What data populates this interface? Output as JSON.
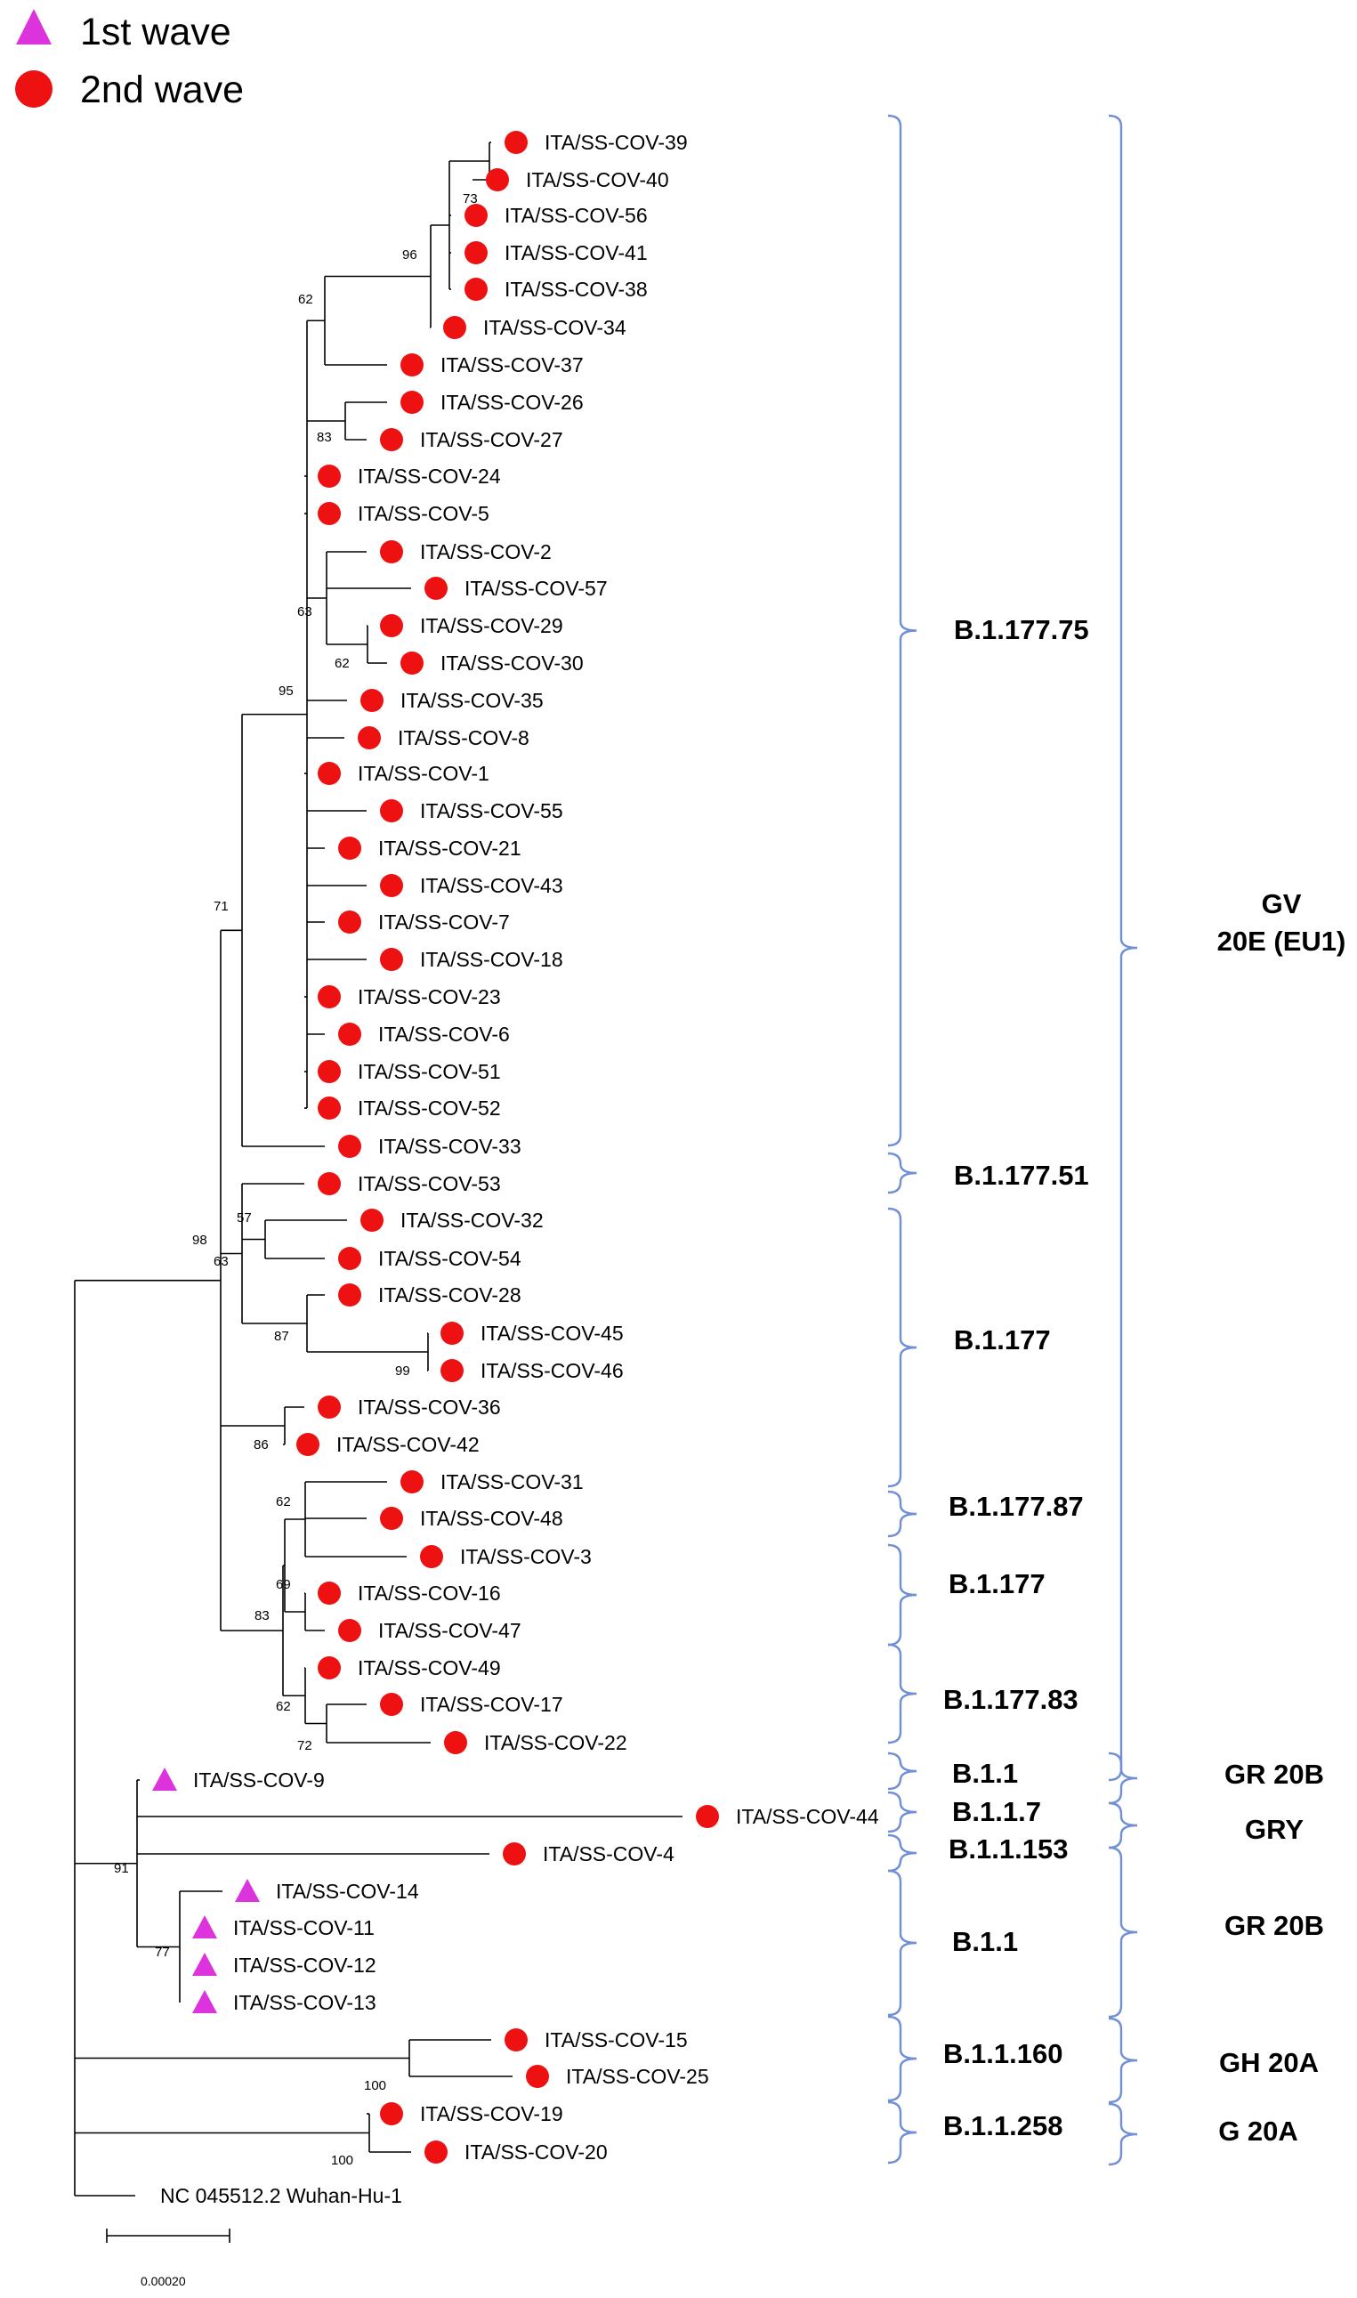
{
  "legend": [
    {
      "label": "1st wave",
      "shape": "triangle",
      "color": "#dd33dd"
    },
    {
      "label": "2nd wave",
      "shape": "circle",
      "color": "#ee1111"
    }
  ],
  "colors": {
    "wave1": "#dd33dd",
    "wave2": "#ee1111",
    "brace": "#6f8fd6",
    "branch": "#000000"
  },
  "leaves": [
    {
      "label": "ITA/SS-COV-39",
      "wave": 2
    },
    {
      "label": "ITA/SS-COV-40",
      "wave": 2
    },
    {
      "label": "ITA/SS-COV-56",
      "wave": 2
    },
    {
      "label": "ITA/SS-COV-41",
      "wave": 2
    },
    {
      "label": "ITA/SS-COV-38",
      "wave": 2
    },
    {
      "label": "ITA/SS-COV-34",
      "wave": 2
    },
    {
      "label": "ITA/SS-COV-37",
      "wave": 2
    },
    {
      "label": "ITA/SS-COV-26",
      "wave": 2
    },
    {
      "label": "ITA/SS-COV-27",
      "wave": 2
    },
    {
      "label": "ITA/SS-COV-24",
      "wave": 2
    },
    {
      "label": "ITA/SS-COV-5",
      "wave": 2
    },
    {
      "label": "ITA/SS-COV-2",
      "wave": 2
    },
    {
      "label": "ITA/SS-COV-57",
      "wave": 2
    },
    {
      "label": "ITA/SS-COV-29",
      "wave": 2
    },
    {
      "label": "ITA/SS-COV-30",
      "wave": 2
    },
    {
      "label": "ITA/SS-COV-35",
      "wave": 2
    },
    {
      "label": "ITA/SS-COV-8",
      "wave": 2
    },
    {
      "label": "ITA/SS-COV-1",
      "wave": 2
    },
    {
      "label": "ITA/SS-COV-55",
      "wave": 2
    },
    {
      "label": "ITA/SS-COV-21",
      "wave": 2
    },
    {
      "label": "ITA/SS-COV-43",
      "wave": 2
    },
    {
      "label": "ITA/SS-COV-7",
      "wave": 2
    },
    {
      "label": "ITA/SS-COV-18",
      "wave": 2
    },
    {
      "label": "ITA/SS-COV-23",
      "wave": 2
    },
    {
      "label": "ITA/SS-COV-6",
      "wave": 2
    },
    {
      "label": "ITA/SS-COV-51",
      "wave": 2
    },
    {
      "label": "ITA/SS-COV-52",
      "wave": 2
    },
    {
      "label": "ITA/SS-COV-33",
      "wave": 2
    },
    {
      "label": "ITA/SS-COV-53",
      "wave": 2
    },
    {
      "label": "ITA/SS-COV-32",
      "wave": 2
    },
    {
      "label": "ITA/SS-COV-54",
      "wave": 2
    },
    {
      "label": "ITA/SS-COV-28",
      "wave": 2
    },
    {
      "label": "ITA/SS-COV-45",
      "wave": 2
    },
    {
      "label": "ITA/SS-COV-46",
      "wave": 2
    },
    {
      "label": "ITA/SS-COV-36",
      "wave": 2
    },
    {
      "label": "ITA/SS-COV-42",
      "wave": 2
    },
    {
      "label": "ITA/SS-COV-31",
      "wave": 2
    },
    {
      "label": "ITA/SS-COV-48",
      "wave": 2
    },
    {
      "label": "ITA/SS-COV-3",
      "wave": 2
    },
    {
      "label": "ITA/SS-COV-16",
      "wave": 2
    },
    {
      "label": "ITA/SS-COV-47",
      "wave": 2
    },
    {
      "label": "ITA/SS-COV-49",
      "wave": 2
    },
    {
      "label": "ITA/SS-COV-17",
      "wave": 2
    },
    {
      "label": "ITA/SS-COV-22",
      "wave": 2
    },
    {
      "label": "ITA/SS-COV-9",
      "wave": 1
    },
    {
      "label": "ITA/SS-COV-44",
      "wave": 2
    },
    {
      "label": "ITA/SS-COV-4",
      "wave": 2
    },
    {
      "label": "ITA/SS-COV-14",
      "wave": 1
    },
    {
      "label": "ITA/SS-COV-11",
      "wave": 1
    },
    {
      "label": "ITA/SS-COV-12",
      "wave": 1
    },
    {
      "label": "ITA/SS-COV-13",
      "wave": 1
    },
    {
      "label": "ITA/SS-COV-15",
      "wave": 2
    },
    {
      "label": "ITA/SS-COV-25",
      "wave": 2
    },
    {
      "label": "ITA/SS-COV-19",
      "wave": 2
    },
    {
      "label": "ITA/SS-COV-20",
      "wave": 2
    },
    {
      "label": "NC 045512.2 Wuhan-Hu-1",
      "wave": 0
    }
  ],
  "bootstrap_values": [
    "73",
    "96",
    "62",
    "83",
    "63",
    "62",
    "95",
    "71",
    "57",
    "98",
    "63",
    "87",
    "99",
    "86",
    "62",
    "69",
    "83",
    "62",
    "72",
    "91",
    "77",
    "100",
    "100"
  ],
  "lineages": [
    "B.1.177.75",
    "B.1.177.51",
    "B.1.177",
    "B.1.177.87",
    "B.1.177",
    "B.1.177.83",
    "B.1.1",
    "B.1.1.7",
    "B.1.1.153",
    "B.1.1",
    "B.1.1.160",
    "B.1.1.258"
  ],
  "clades": [
    {
      "label": "GV",
      "sublabel": "20E (EU1)"
    },
    {
      "label": "GR 20B"
    },
    {
      "label": "GRY"
    },
    {
      "label": "GR 20B"
    },
    {
      "label": "GH 20A"
    },
    {
      "label": "G 20A"
    }
  ],
  "scale_bar": {
    "label": "0.00020"
  }
}
